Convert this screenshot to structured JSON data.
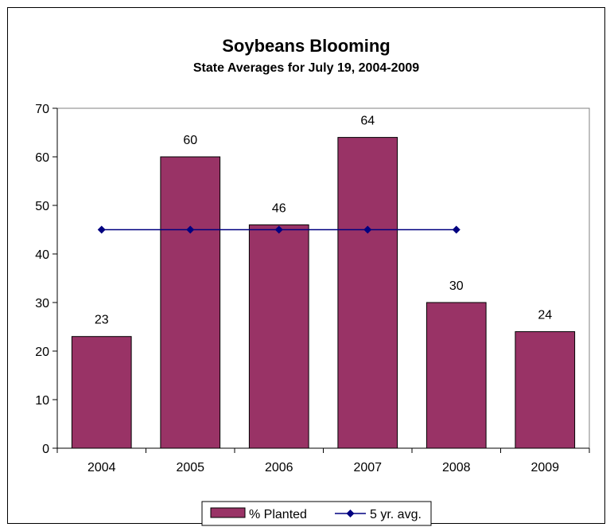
{
  "chart_data": {
    "type": "bar",
    "title": "Soybeans Blooming",
    "subtitle": "State Averages for July 19, 2004-2009",
    "categories": [
      "2004",
      "2005",
      "2006",
      "2007",
      "2008",
      "2009"
    ],
    "series": [
      {
        "name": "% Planted",
        "kind": "bar",
        "values": [
          23,
          60,
          46,
          64,
          30,
          24
        ],
        "color": "#993366"
      },
      {
        "name": "5 yr. avg.",
        "kind": "line",
        "values": [
          45,
          45,
          45,
          45,
          45,
          null
        ],
        "color": "#000080"
      }
    ],
    "ylim": [
      0,
      70
    ],
    "yticks": [
      "0",
      "10",
      "20",
      "30",
      "40",
      "50",
      "60",
      "70"
    ],
    "grid": false,
    "legend": "bottom",
    "colors": {
      "plot_border": "#808080",
      "axis": "#000000"
    }
  }
}
